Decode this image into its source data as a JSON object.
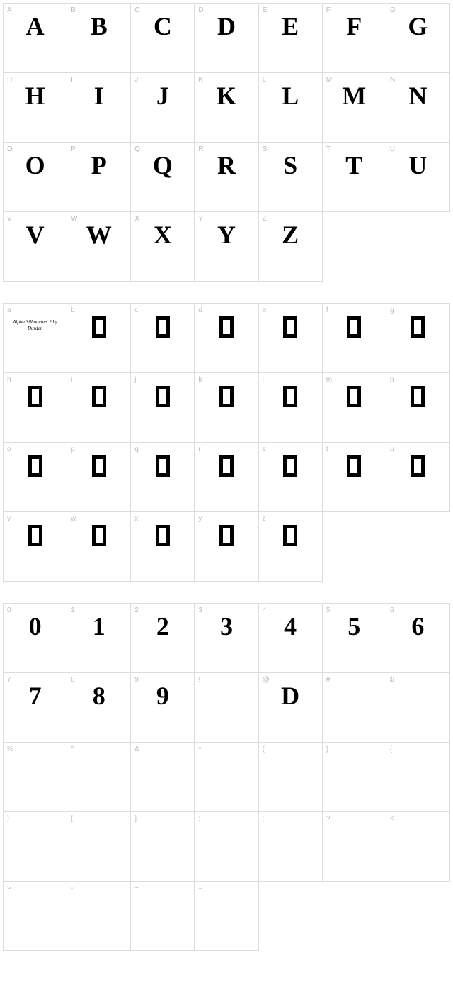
{
  "sections": [
    {
      "rows": [
        [
          {
            "k": "A",
            "g": "A",
            "t": "glyph"
          },
          {
            "k": "B",
            "g": "B",
            "t": "glyph"
          },
          {
            "k": "C",
            "g": "C",
            "t": "glyph"
          },
          {
            "k": "D",
            "g": "D",
            "t": "glyph"
          },
          {
            "k": "E",
            "g": "E",
            "t": "glyph"
          },
          {
            "k": "F",
            "g": "F",
            "t": "glyph"
          },
          {
            "k": "G",
            "g": "G",
            "t": "glyph"
          }
        ],
        [
          {
            "k": "H",
            "g": "H",
            "t": "glyph"
          },
          {
            "k": "I",
            "g": "I",
            "t": "glyph"
          },
          {
            "k": "J",
            "g": "J",
            "t": "glyph"
          },
          {
            "k": "K",
            "g": "K",
            "t": "glyph"
          },
          {
            "k": "L",
            "g": "L",
            "t": "glyph"
          },
          {
            "k": "M",
            "g": "M",
            "t": "glyph"
          },
          {
            "k": "N",
            "g": "N",
            "t": "glyph"
          }
        ],
        [
          {
            "k": "O",
            "g": "O",
            "t": "glyph"
          },
          {
            "k": "P",
            "g": "P",
            "t": "glyph"
          },
          {
            "k": "Q",
            "g": "Q",
            "t": "glyph"
          },
          {
            "k": "R",
            "g": "R",
            "t": "glyph"
          },
          {
            "k": "S",
            "g": "S",
            "t": "glyph"
          },
          {
            "k": "T",
            "g": "T",
            "t": "glyph"
          },
          {
            "k": "U",
            "g": "U",
            "t": "glyph"
          }
        ],
        [
          {
            "k": "V",
            "g": "V",
            "t": "glyph"
          },
          {
            "k": "W",
            "g": "W",
            "t": "glyph"
          },
          {
            "k": "X",
            "g": "X",
            "t": "glyph"
          },
          {
            "k": "Y",
            "g": "Y",
            "t": "glyph"
          },
          {
            "k": "Z",
            "g": "Z",
            "t": "glyph"
          },
          {
            "t": "empty"
          },
          {
            "t": "empty"
          }
        ]
      ]
    },
    {
      "rows": [
        [
          {
            "k": "a",
            "t": "script",
            "g": "Alpha Silhouettes 2\nby Durden"
          },
          {
            "k": "b",
            "t": "box"
          },
          {
            "k": "c",
            "t": "box"
          },
          {
            "k": "d",
            "t": "box"
          },
          {
            "k": "e",
            "t": "box"
          },
          {
            "k": "f",
            "t": "box"
          },
          {
            "k": "g",
            "t": "box"
          }
        ],
        [
          {
            "k": "h",
            "t": "box"
          },
          {
            "k": "i",
            "t": "box"
          },
          {
            "k": "j",
            "t": "box"
          },
          {
            "k": "k",
            "t": "box"
          },
          {
            "k": "l",
            "t": "box"
          },
          {
            "k": "m",
            "t": "box"
          },
          {
            "k": "n",
            "t": "box"
          }
        ],
        [
          {
            "k": "o",
            "t": "box"
          },
          {
            "k": "p",
            "t": "box"
          },
          {
            "k": "q",
            "t": "box"
          },
          {
            "k": "r",
            "t": "box"
          },
          {
            "k": "s",
            "t": "box"
          },
          {
            "k": "t",
            "t": "box"
          },
          {
            "k": "u",
            "t": "box"
          }
        ],
        [
          {
            "k": "v",
            "t": "box"
          },
          {
            "k": "w",
            "t": "box"
          },
          {
            "k": "x",
            "t": "box"
          },
          {
            "k": "y",
            "t": "box"
          },
          {
            "k": "z",
            "t": "box"
          },
          {
            "t": "empty"
          },
          {
            "t": "empty"
          }
        ]
      ]
    },
    {
      "rows": [
        [
          {
            "k": "0",
            "g": "0",
            "t": "glyph"
          },
          {
            "k": "1",
            "g": "1",
            "t": "glyph"
          },
          {
            "k": "2",
            "g": "2",
            "t": "glyph"
          },
          {
            "k": "3",
            "g": "3",
            "t": "glyph"
          },
          {
            "k": "4",
            "g": "4",
            "t": "glyph"
          },
          {
            "k": "5",
            "g": "5",
            "t": "glyph"
          },
          {
            "k": "6",
            "g": "6",
            "t": "glyph"
          }
        ],
        [
          {
            "k": "7",
            "g": "7",
            "t": "glyph"
          },
          {
            "k": "8",
            "g": "8",
            "t": "glyph"
          },
          {
            "k": "9",
            "g": "9",
            "t": "glyph"
          },
          {
            "k": "!",
            "g": "",
            "t": "blank"
          },
          {
            "k": "@",
            "g": "D",
            "t": "glyph"
          },
          {
            "k": "#",
            "g": "",
            "t": "blank"
          },
          {
            "k": "$",
            "g": "",
            "t": "blank"
          }
        ],
        [
          {
            "k": "%",
            "g": "",
            "t": "blank"
          },
          {
            "k": "^",
            "g": "",
            "t": "blank"
          },
          {
            "k": "&",
            "g": "",
            "t": "blank"
          },
          {
            "k": "*",
            "g": "",
            "t": "blank"
          },
          {
            "k": "(",
            "g": "",
            "t": "blank"
          },
          {
            "k": ")",
            "g": "",
            "t": "blank"
          },
          {
            "k": "{",
            "g": "",
            "t": "blank"
          }
        ],
        [
          {
            "k": "}",
            "g": "",
            "t": "blank"
          },
          {
            "k": "[",
            "g": "",
            "t": "blank"
          },
          {
            "k": "]",
            "g": "",
            "t": "blank"
          },
          {
            "k": ":",
            "g": "",
            "t": "blank"
          },
          {
            "k": ";",
            "g": "",
            "t": "blank"
          },
          {
            "k": "?",
            "g": "",
            "t": "blank"
          },
          {
            "k": "<",
            "g": "",
            "t": "blank"
          }
        ],
        [
          {
            "k": ">",
            "g": "",
            "t": "blank"
          },
          {
            "k": "-",
            "g": "",
            "t": "blank"
          },
          {
            "k": "+",
            "g": "",
            "t": "blank"
          },
          {
            "k": "=",
            "g": "",
            "t": "blank"
          },
          {
            "t": "empty"
          },
          {
            "t": "empty"
          },
          {
            "t": "empty"
          }
        ]
      ]
    }
  ]
}
